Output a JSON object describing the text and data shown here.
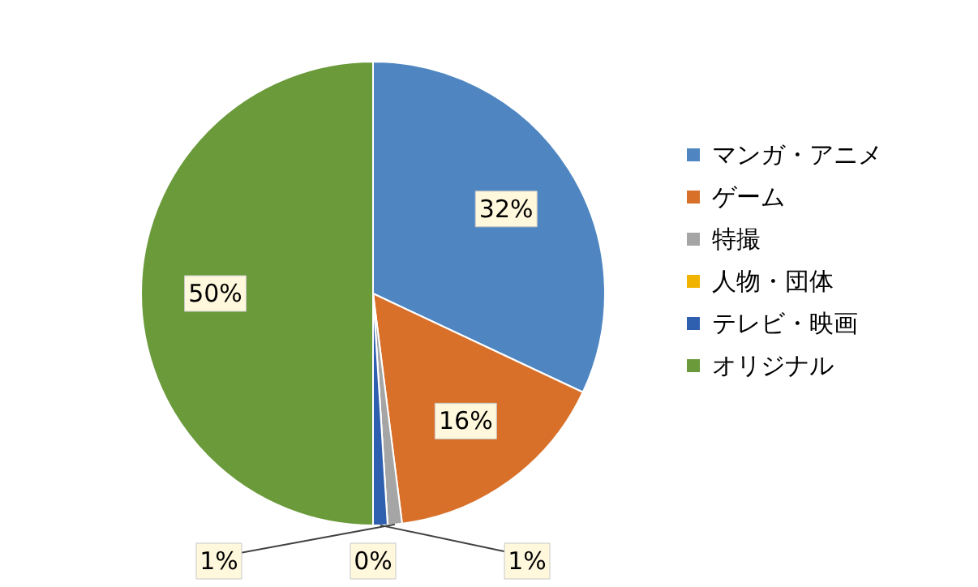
{
  "chart_data": {
    "type": "pie",
    "categories": [
      "マンガ・アニメ",
      "ゲーム",
      "特撮",
      "人物・団体",
      "テレビ・映画",
      "オリジナル"
    ],
    "values": [
      32,
      16,
      1,
      0,
      1,
      50
    ],
    "colors": [
      "#4f86c1",
      "#d8702a",
      "#a5a5a5",
      "#f0b400",
      "#2f5faf",
      "#6a9a3a"
    ],
    "value_labels": [
      "32%",
      "16%",
      "1%",
      "0%",
      "1%",
      "50%"
    ],
    "legend": "right"
  }
}
